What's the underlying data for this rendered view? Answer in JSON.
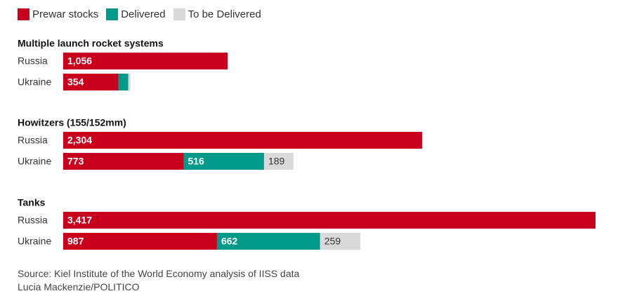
{
  "colors": {
    "prewar": "#c8001e",
    "delivered": "#009a8a",
    "to_be_delivered": "#d9d9d9"
  },
  "legend": [
    {
      "label": "Prewar stocks",
      "color_key": "prewar"
    },
    {
      "label": "Delivered",
      "color_key": "delivered"
    },
    {
      "label": "To be Delivered",
      "color_key": "to_be_delivered"
    }
  ],
  "chart_data": {
    "type": "bar",
    "orientation": "horizontal",
    "stacked": true,
    "legend_position": "top-left",
    "grid": false,
    "xlim": [
      0,
      3417
    ],
    "series_names": [
      "Prewar stocks",
      "Delivered",
      "To be Delivered"
    ],
    "groups": [
      {
        "title": "Multiple launch rocket systems",
        "rows": [
          {
            "label": "Russia",
            "prewar": 1056,
            "delivered": null,
            "to_be_delivered": null
          },
          {
            "label": "Ukraine",
            "prewar": 354,
            "delivered": 63,
            "to_be_delivered": 15
          }
        ]
      },
      {
        "title": "Howitzers (155/152mm)",
        "rows": [
          {
            "label": "Russia",
            "prewar": 2304,
            "delivered": null,
            "to_be_delivered": null
          },
          {
            "label": "Ukraine",
            "prewar": 773,
            "delivered": 516,
            "to_be_delivered": 189
          }
        ]
      },
      {
        "title": "Tanks",
        "rows": [
          {
            "label": "Russia",
            "prewar": 3417,
            "delivered": null,
            "to_be_delivered": null
          },
          {
            "label": "Ukraine",
            "prewar": 987,
            "delivered": 662,
            "to_be_delivered": 259
          }
        ]
      }
    ],
    "value_labels_shown": {
      "prewar": true,
      "delivered_min": 100,
      "to_be_delivered_min": 100
    }
  },
  "source": {
    "line1": "Source: Kiel Institute of the World Economy analysis of IISS data",
    "line2": "Lucia Mackenzie/POLITICO"
  }
}
